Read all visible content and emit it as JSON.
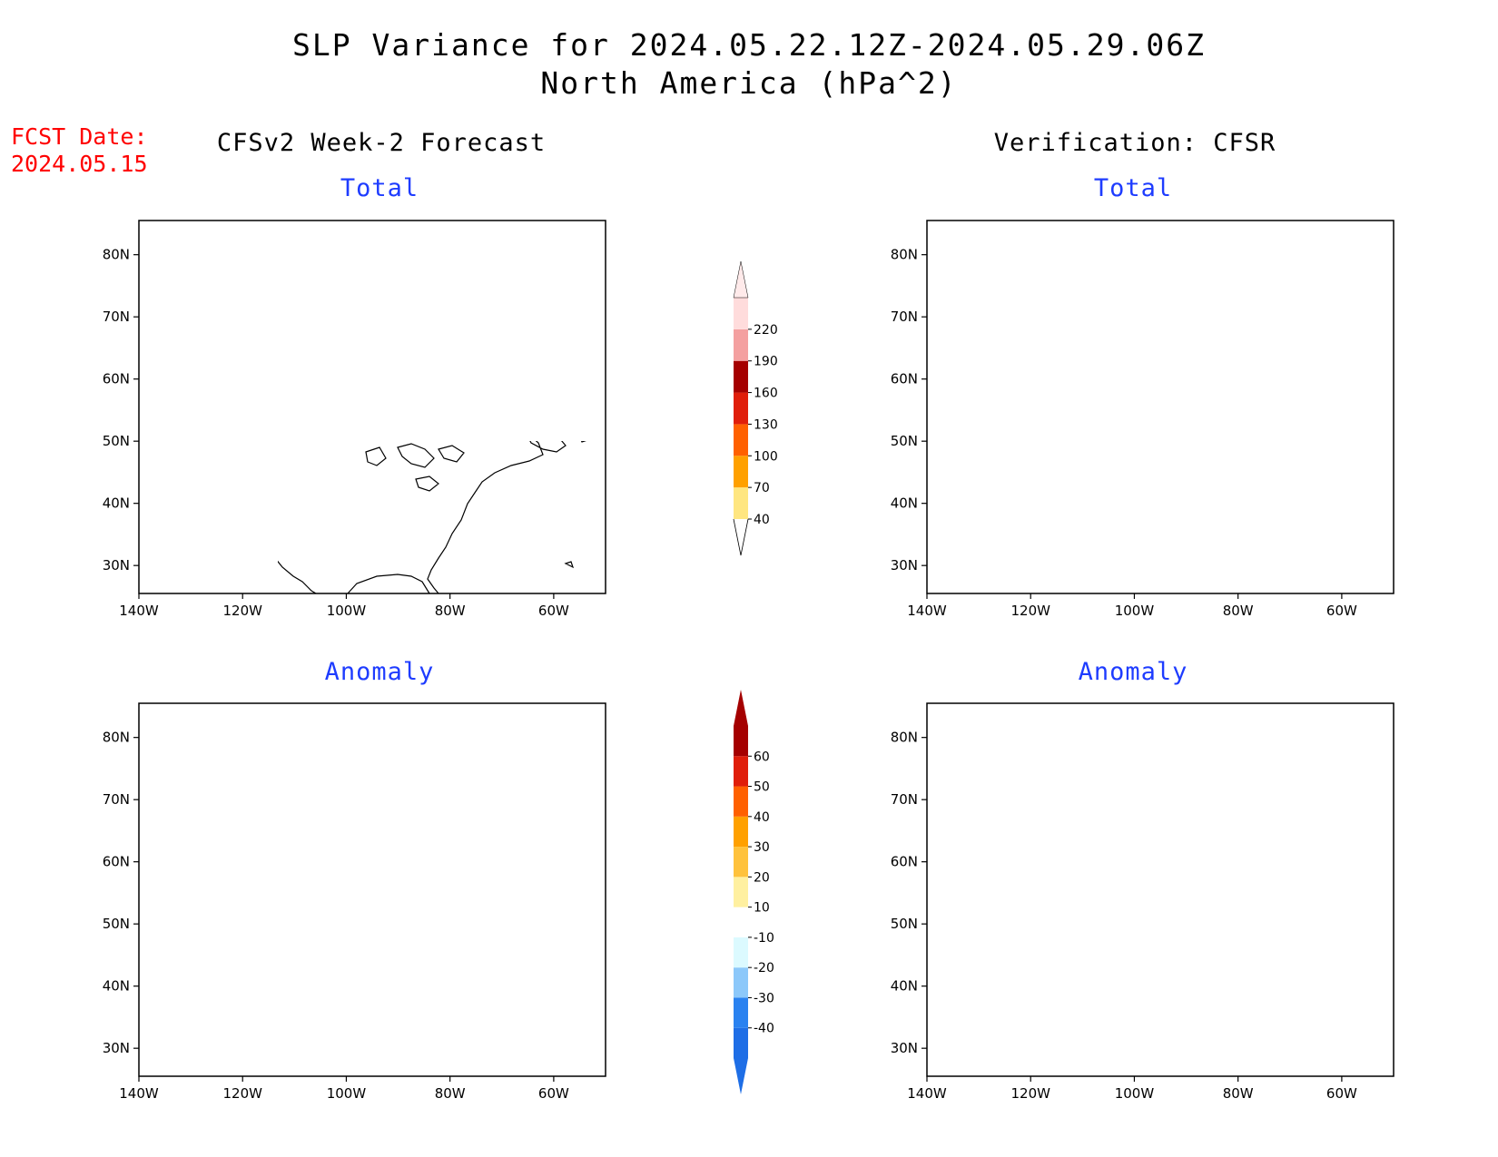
{
  "header": {
    "title_line1": "SLP Variance for 2024.05.22.12Z-2024.05.29.06Z",
    "title_line2": "North America (hPa^2)",
    "fcst_line1": "FCST Date:",
    "fcst_line2": "2024.05.15"
  },
  "columns": {
    "left": "CFSv2 Week-2 Forecast",
    "right": "Verification: CFSR"
  },
  "panels": {
    "top_left": "Total",
    "top_right": "Total",
    "bottom_left": "Anomaly",
    "bottom_right": "Anomaly"
  },
  "axes": {
    "lat_labels": [
      "80N",
      "70N",
      "60N",
      "50N",
      "40N",
      "30N"
    ],
    "lat_values": [
      80,
      70,
      60,
      50,
      40,
      30
    ],
    "lon_labels": [
      "140W",
      "120W",
      "100W",
      "80W",
      "60W"
    ],
    "lon_values": [
      -140,
      -120,
      -100,
      -80,
      -60
    ]
  },
  "colorbar_total": {
    "labels": [
      "40",
      "70",
      "100",
      "130",
      "160",
      "190",
      "220"
    ],
    "colors": [
      "#ffe680",
      "#ffa000",
      "#ff6000",
      "#e01e0a",
      "#a50000",
      "#f4a0a0",
      "#ffdcdc"
    ]
  },
  "colorbar_anomaly": {
    "labels": [
      "-40",
      "-30",
      "-20",
      "-10",
      "10",
      "20",
      "30",
      "40",
      "50",
      "60"
    ],
    "colors": [
      "#1e6ee6",
      "#2a82f0",
      "#8cc8fa",
      "#dcfaff",
      "#ffffff",
      "#fff0a0",
      "#ffc23c",
      "#ffa000",
      "#ff6000",
      "#e01e0a",
      "#a50000"
    ]
  },
  "colors": {
    "title_blue": "#1e3cff",
    "fcst_red": "#ff0000"
  }
}
